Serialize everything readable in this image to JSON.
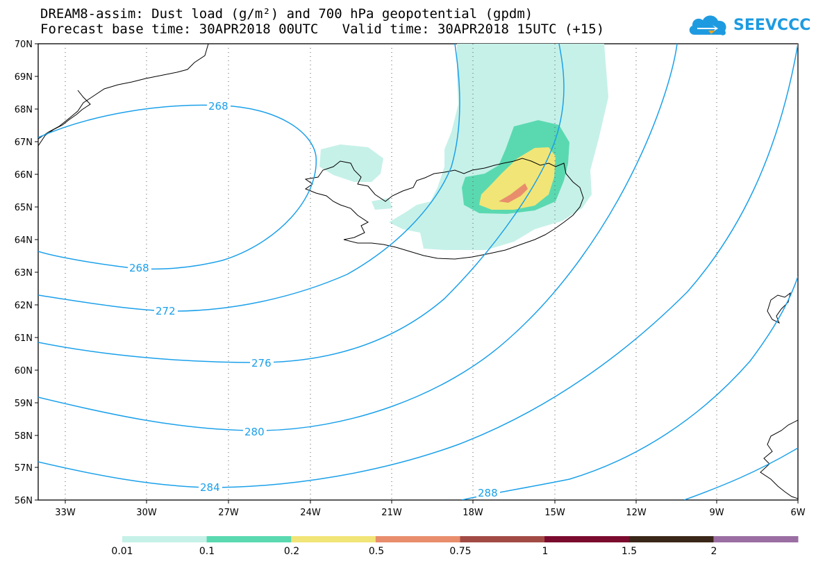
{
  "header": {
    "title_line1": "DREAM8-assim: Dust load (g/m²) and 700 hPa geopotential (gpdm)",
    "title_line2": "Forecast base time: 30APR2018 00UTC   Valid time: 30APR2018 15UTC (+15)"
  },
  "logo": {
    "text": "SEEVCCC",
    "icon": "cloud-icon",
    "color": "#1e9be0"
  },
  "map": {
    "projection": "lat-lon",
    "lat_range": [
      "56N",
      "70N"
    ],
    "lon_range": [
      "34.4W",
      "6W"
    ],
    "lat_labels": [
      "70N",
      "69N",
      "68N",
      "67N",
      "66N",
      "65N",
      "64N",
      "63N",
      "62N",
      "61N",
      "60N",
      "59N",
      "58N",
      "57N",
      "56N"
    ],
    "lon_labels": [
      "33W",
      "30W",
      "27W",
      "24W",
      "21W",
      "18W",
      "15W",
      "12W",
      "9W",
      "6W"
    ],
    "grid": "dotted",
    "coastline_color": "#000000",
    "contour_color": "#1aa0ea",
    "contours": [
      {
        "value": 268,
        "label": "268"
      },
      {
        "value": 268,
        "label": "268"
      },
      {
        "value": 272,
        "label": "272"
      },
      {
        "value": 276,
        "label": "276"
      },
      {
        "value": 280,
        "label": "280"
      },
      {
        "value": 284,
        "label": "284"
      },
      {
        "value": 288,
        "label": "288"
      }
    ],
    "dust_fill": "Dust plume over eastern Iceland extending north",
    "dust_max_category": "0.5-0.75"
  },
  "legend": {
    "bins": [
      {
        "color": "#c6f1e8"
      },
      {
        "color": "#5ad9b0"
      },
      {
        "color": "#f1e577"
      },
      {
        "color": "#e88e6c"
      },
      {
        "color": "#a24b45"
      },
      {
        "color": "#7b0b2e"
      },
      {
        "color": "#3a2618"
      },
      {
        "color": "#9a6ea3"
      }
    ],
    "labels": [
      "0.01",
      "0.1",
      "0.2",
      "0.5",
      "0.75",
      "1",
      "1.5",
      "2"
    ]
  }
}
